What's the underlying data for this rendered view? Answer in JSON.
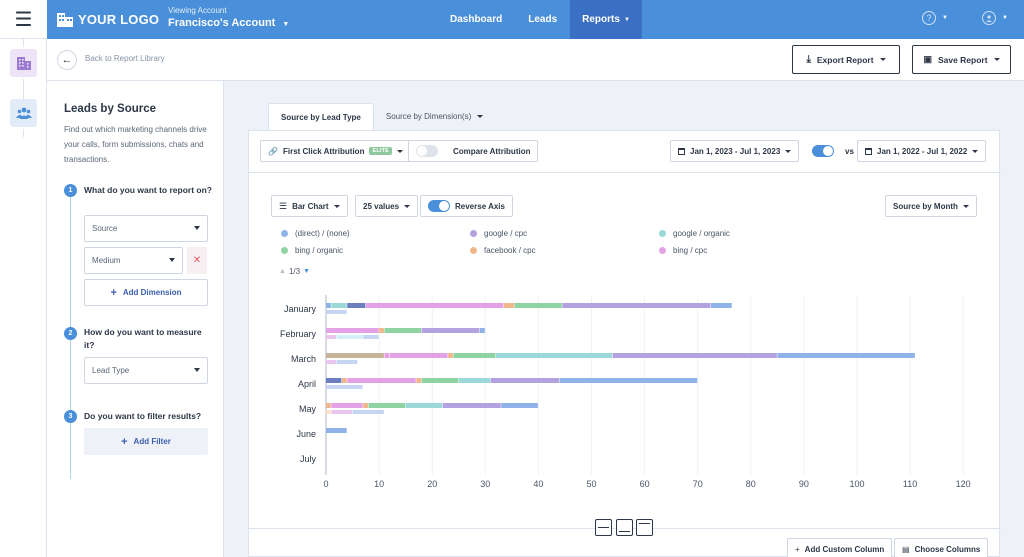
{
  "header": {
    "logo_text": "YOUR LOGO",
    "viewing_label": "Viewing Account",
    "account_name": "Francisco's Account",
    "nav": [
      "Dashboard",
      "Leads",
      "Reports"
    ],
    "active_nav": "Reports",
    "brand_color": "#4a8fd9"
  },
  "subheader": {
    "back_label": "Back to Report Library",
    "export_label": "Export Report",
    "save_label": "Save Report"
  },
  "left_panel": {
    "title": "Leads by Source",
    "description": "Find out which marketing channels drive your calls, form submissions, chats and transactions.",
    "steps": [
      {
        "num": "1",
        "label": "What do you want to report on?"
      },
      {
        "num": "2",
        "label": "How do you want to measure it?"
      },
      {
        "num": "3",
        "label": "Do you want to filter results?"
      }
    ],
    "source_select": "Source",
    "medium_select": "Medium",
    "remove_label": "✕",
    "add_dimension": "Add Dimension",
    "lead_type_select": "Lead Type",
    "add_filter": "Add Filter"
  },
  "tabs": {
    "source_by_lead_type": "Source by Lead Type",
    "source_by_dimensions": "Source by Dimension(s)"
  },
  "controls": {
    "attribution": "First Click Attribution",
    "elite_badge": "ELITE",
    "compare_attribution": "Compare Attribution",
    "date_range_1": "Jan 1, 2023 - Jul 1, 2023",
    "vs_label": "vs",
    "date_range_2": "Jan 1, 2022 - Jul 1, 2022",
    "chart_type": "Bar Chart",
    "values_count": "25 values",
    "reverse_axis": "Reverse Axis",
    "group_by": "Source by Month"
  },
  "pager": {
    "label": "1/3"
  },
  "footer": {
    "add_custom_column": "Add Custom Column",
    "choose_columns": "Choose Columns"
  },
  "chart_data": {
    "type": "bar",
    "orientation": "horizontal-stacked",
    "categories": [
      "January",
      "February",
      "March",
      "April",
      "May",
      "June",
      "July"
    ],
    "legend": [
      {
        "name": "(direct) / (none)",
        "color": "#8fb3e8"
      },
      {
        "name": "google / cpc",
        "color": "#b3a1e0"
      },
      {
        "name": "google / organic",
        "color": "#9ad9d8"
      },
      {
        "name": "bing / organic",
        "color": "#8fd3a3"
      },
      {
        "name": "facebook / cpc",
        "color": "#f0b88a"
      },
      {
        "name": "bing / cpc",
        "color": "#e3a1e6"
      }
    ],
    "current_segments": [
      [
        {
          "v": 1,
          "c": "#8fb3e8"
        },
        {
          "v": 3,
          "c": "#9ad9d8"
        },
        {
          "v": 3.5,
          "c": "#6b7fbe"
        },
        {
          "v": 26,
          "c": "#e3a1e6"
        },
        {
          "v": 2,
          "c": "#f0b88a"
        },
        {
          "v": 9,
          "c": "#8fd3a3"
        },
        {
          "v": 28,
          "c": "#b3a1e0"
        },
        {
          "v": 4,
          "c": "#8fb3e8"
        }
      ],
      [
        {
          "v": 10,
          "c": "#e3a1e6"
        },
        {
          "v": 1,
          "c": "#f0b88a"
        },
        {
          "v": 7,
          "c": "#8fd3a3"
        },
        {
          "v": 11,
          "c": "#b3a1e0"
        },
        {
          "v": 1,
          "c": "#8fb3e8"
        }
      ],
      [
        {
          "v": 11,
          "c": "#c8b49a"
        },
        {
          "v": 1,
          "c": "#e3a1e6"
        },
        {
          "v": 11,
          "c": "#e3a1e6"
        },
        {
          "v": 1,
          "c": "#f0b88a"
        },
        {
          "v": 8,
          "c": "#8fd3a3"
        },
        {
          "v": 22,
          "c": "#9ad9d8"
        },
        {
          "v": 31,
          "c": "#b3a1e0"
        },
        {
          "v": 26,
          "c": "#8fb3e8"
        }
      ],
      [
        {
          "v": 3,
          "c": "#6b7fbe"
        },
        {
          "v": 1,
          "c": "#f0b88a"
        },
        {
          "v": 13,
          "c": "#e3a1e6"
        },
        {
          "v": 1,
          "c": "#f0b88a"
        },
        {
          "v": 7,
          "c": "#8fd3a3"
        },
        {
          "v": 6,
          "c": "#9ad9d8"
        },
        {
          "v": 13,
          "c": "#b3a1e0"
        },
        {
          "v": 26,
          "c": "#8fb3e8"
        }
      ],
      [
        {
          "v": 1,
          "c": "#f0b88a"
        },
        {
          "v": 6,
          "c": "#e3a1e6"
        },
        {
          "v": 1,
          "c": "#f0b88a"
        },
        {
          "v": 7,
          "c": "#8fd3a3"
        },
        {
          "v": 7,
          "c": "#9ad9d8"
        },
        {
          "v": 11,
          "c": "#b3a1e0"
        },
        {
          "v": 7,
          "c": "#8fb3e8"
        }
      ],
      [
        {
          "v": 4,
          "c": "#8fb3e8"
        }
      ],
      []
    ],
    "previous_segments": [
      [
        {
          "v": 4,
          "c": "#c5d5f2"
        }
      ],
      [
        {
          "v": 2,
          "c": "#e8c6ee"
        },
        {
          "v": 5,
          "c": "#d4eef5"
        },
        {
          "v": 3,
          "c": "#c5d5f2"
        }
      ],
      [
        {
          "v": 2,
          "c": "#e8c6ee"
        },
        {
          "v": 4,
          "c": "#c5d5f2"
        }
      ],
      [
        {
          "v": 7,
          "c": "#c5d5f2"
        }
      ],
      [
        {
          "v": 1,
          "c": "#fae3c8"
        },
        {
          "v": 4,
          "c": "#e8c6ee"
        },
        {
          "v": 6,
          "c": "#c5d5f2"
        }
      ],
      [],
      []
    ],
    "xlim": [
      0,
      120
    ],
    "xticks": [
      0,
      10,
      20,
      30,
      40,
      50,
      60,
      70,
      80,
      90,
      100,
      110,
      120
    ],
    "grid": true
  }
}
